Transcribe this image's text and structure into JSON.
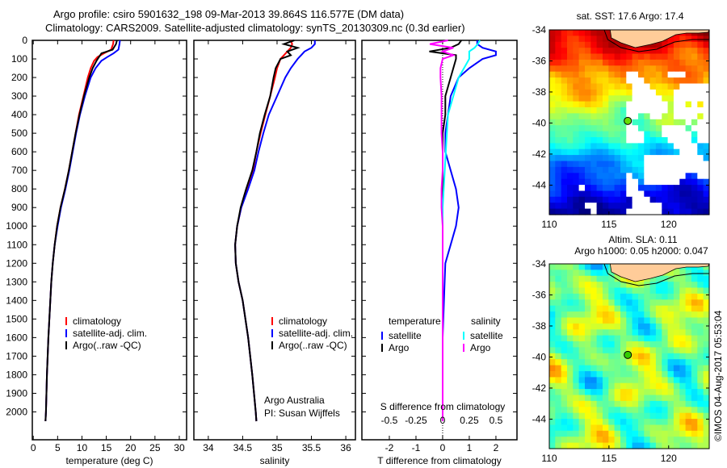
{
  "title_line1": "Argo profile: csiro 5901632_198 09-Mar-2013 39.864S 116.577E (DM data)",
  "title_line2": "Climatology: CARS2009. Satellite-adjusted climatology: synTS_20130309.nc (0.3d earlier)",
  "credit": "Argo Australia",
  "pi": "PI: Susan Wijffels",
  "timestamp": "©IMOS 04-Aug-2017 05:53:04",
  "colors": {
    "climatology": "#ff0000",
    "satellite": "#0000ff",
    "argo": "#000000",
    "sal_satellite": "#00ffff",
    "sal_argo": "#ff00ff",
    "land": "#ffcc99"
  },
  "chart_data": [
    {
      "type": "line",
      "id": "temperature",
      "xlabel": "temperature (deg C)",
      "xlim": [
        -0.2,
        31.5
      ],
      "ylim": [
        2150,
        0
      ],
      "xticks": [
        0,
        5,
        10,
        15,
        20,
        25,
        30
      ],
      "yticks": [
        0,
        100,
        200,
        300,
        400,
        500,
        600,
        700,
        800,
        900,
        1000,
        1100,
        1200,
        1300,
        1400,
        1500,
        1600,
        1700,
        1800,
        1900,
        2000
      ],
      "legend": [
        "climatology",
        "satellite-adj. clim.",
        "Argo(..raw -QC)"
      ],
      "depth": [
        0,
        20,
        50,
        70,
        90,
        110,
        150,
        200,
        300,
        400,
        500,
        600,
        700,
        800,
        900,
        1000,
        1100,
        1200,
        1300,
        1400,
        1600,
        1800,
        2000,
        2050
      ],
      "series": [
        {
          "name": "climatology",
          "values": [
            16.5,
            16.4,
            16,
            14.5,
            13.2,
            12.5,
            11.8,
            11.2,
            10.3,
            9.4,
            8.7,
            8.0,
            7.3,
            6.5,
            5.6,
            4.9,
            4.4,
            4.0,
            3.7,
            3.5,
            3.1,
            2.8,
            2.6,
            2.5
          ]
        },
        {
          "name": "satellite-adj. clim.",
          "values": [
            17.8,
            17.7,
            17.5,
            16.5,
            15.2,
            14.0,
            12.8,
            11.8,
            10.6,
            9.6,
            8.8,
            8.1,
            7.4,
            6.6,
            5.7,
            5.0,
            4.4,
            4.0,
            3.7,
            3.5,
            3.1,
            2.8,
            2.6,
            2.5
          ]
        },
        {
          "name": "Argo(..raw -QC)",
          "values": [
            17.2,
            17.0,
            16.3,
            14.0,
            13.5,
            13.0,
            12.2,
            11.5,
            10.4,
            9.5,
            8.7,
            8.0,
            7.3,
            6.5,
            5.6,
            4.9,
            4.4,
            4.0,
            3.7,
            3.5,
            3.1,
            2.8,
            2.6,
            2.5
          ]
        }
      ]
    },
    {
      "type": "line",
      "id": "salinity",
      "xlabel": "salinity",
      "xlim": [
        33.79,
        36.14
      ],
      "ylim": [
        2150,
        0
      ],
      "xticks": [
        34,
        34.5,
        35,
        35.5,
        36
      ],
      "legend": [
        "climatology",
        "satellite-adj. clim.",
        "Argo(..raw -QC)"
      ],
      "depth": [
        0,
        20,
        40,
        60,
        80,
        100,
        150,
        200,
        300,
        400,
        500,
        600,
        700,
        800,
        900,
        1000,
        1100,
        1200,
        1300,
        1400,
        1600,
        1800,
        2000,
        2050
      ],
      "series": [
        {
          "name": "climatology",
          "values": [
            35.2,
            35.22,
            35.2,
            35.15,
            35.1,
            35.05,
            35.0,
            34.97,
            34.9,
            34.83,
            34.76,
            34.7,
            34.65,
            34.57,
            34.48,
            34.42,
            34.39,
            34.4,
            34.44,
            34.5,
            34.58,
            34.64,
            34.69,
            34.7
          ]
        },
        {
          "name": "satellite-adj. clim.",
          "values": [
            35.55,
            35.55,
            35.5,
            35.4,
            35.35,
            35.3,
            35.2,
            35.12,
            35.0,
            34.88,
            34.8,
            34.73,
            34.67,
            34.58,
            34.48,
            34.42,
            34.39,
            34.4,
            34.44,
            34.5,
            34.58,
            34.64,
            34.69,
            34.7
          ]
        },
        {
          "name": "Argo(..raw -QC)",
          "values": [
            35.25,
            35.1,
            35.3,
            35.15,
            35.2,
            35.05,
            34.98,
            34.95,
            34.9,
            34.82,
            34.75,
            34.7,
            34.64,
            34.55,
            34.47,
            34.42,
            34.39,
            34.4,
            34.44,
            34.5,
            34.58,
            34.64,
            34.69,
            34.7
          ]
        }
      ]
    },
    {
      "type": "line",
      "id": "difference",
      "xlabel": "T difference from climatology",
      "x2label": "S difference from climatology",
      "xlim": [
        -3.03,
        2.79
      ],
      "ylim": [
        2150,
        0
      ],
      "xticks": [
        -2,
        -1,
        0,
        1,
        2
      ],
      "x2ticks": [
        -0.5,
        -0.25,
        0,
        0.25,
        0.5
      ],
      "legend_temperature_title": "temperature",
      "legend_salinity_title": "salinity",
      "legend_labels": [
        "satellite",
        "Argo",
        "satellite",
        "Argo"
      ],
      "depth": [
        0,
        20,
        40,
        60,
        80,
        100,
        150,
        200,
        300,
        400,
        500,
        600,
        700,
        800,
        900,
        1000,
        1100,
        1200,
        1400,
        1600,
        1800,
        2000,
        2050
      ],
      "series": [
        {
          "name": "T satellite",
          "values": [
            1.3,
            1.3,
            1.5,
            2.0,
            2.0,
            1.5,
            1.0,
            0.6,
            0.3,
            0.2,
            0.1,
            0.1,
            0.3,
            0.5,
            0.6,
            0.5,
            0.3,
            0.1,
            0.05,
            0.0,
            0.0,
            0.0,
            0.0
          ]
        },
        {
          "name": "T Argo",
          "values": [
            0.7,
            0.6,
            0.3,
            -0.5,
            0.5,
            0.5,
            0.4,
            0.3,
            0.1,
            0.1,
            0.0,
            0.0,
            0.0,
            0.0,
            0.0,
            0.0,
            0.0,
            0.0,
            0.0,
            0.0,
            0.0,
            0.0,
            0.0
          ]
        },
        {
          "name": "S satellite",
          "values": [
            0.35,
            0.33,
            0.3,
            0.25,
            0.25,
            0.25,
            0.2,
            0.15,
            0.1,
            0.05,
            0.04,
            0.03,
            0.02,
            0.01,
            0.0,
            0.0,
            0.0,
            0.0,
            0.0,
            0.0,
            0.0,
            0.0,
            0.0
          ]
        },
        {
          "name": "S Argo",
          "values": [
            0.05,
            -0.12,
            0.1,
            0.0,
            0.1,
            0.0,
            -0.02,
            -0.02,
            -0.01,
            -0.01,
            -0.01,
            0.0,
            0.0,
            -0.01,
            -0.01,
            0.0,
            0.0,
            0.0,
            0.0,
            0.0,
            0.0,
            0.0,
            0.0
          ]
        }
      ]
    },
    {
      "type": "heatmap",
      "id": "sst-map",
      "title": "sat. SST: 17.6  Argo: 17.4",
      "xlim": [
        110,
        123.4
      ],
      "ylim": [
        -45.9,
        -34
      ],
      "xticks": [
        110,
        115,
        120
      ],
      "yticks": [
        -34,
        -36,
        -38,
        -40,
        -42,
        -44
      ],
      "float_position": {
        "lon": 116.577,
        "lat": -39.864
      }
    },
    {
      "type": "heatmap",
      "id": "sla-map",
      "title": "Altim. SLA: 0.11",
      "subtitle": "Argo h1000: 0.05 h2000: 0.047",
      "xlim": [
        110,
        123.4
      ],
      "ylim": [
        -45.9,
        -34
      ],
      "xticks": [
        110,
        115,
        120
      ],
      "yticks": [
        -34,
        -36,
        -38,
        -40,
        -42,
        -44
      ],
      "float_position": {
        "lon": 116.577,
        "lat": -39.864
      }
    }
  ]
}
